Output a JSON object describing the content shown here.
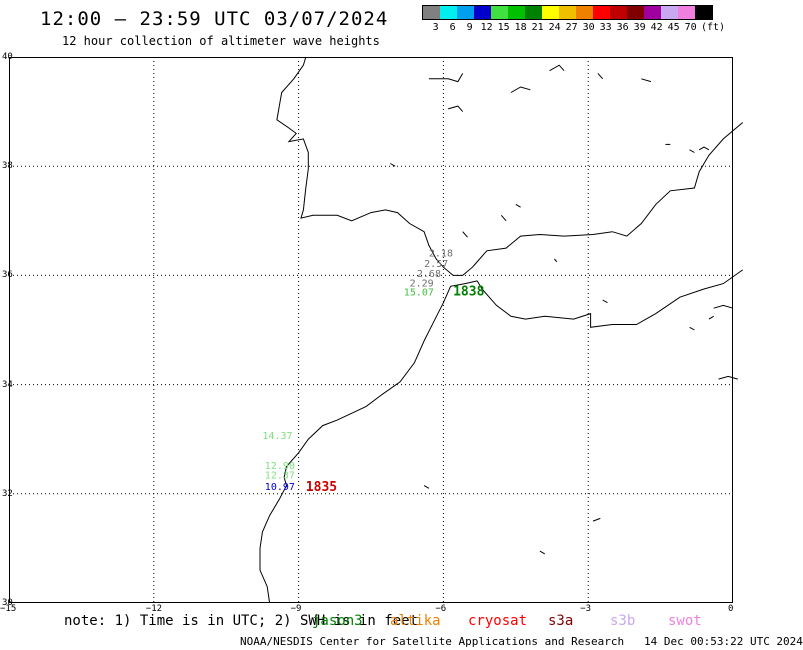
{
  "header": {
    "title": "12:00 – 23:59 UTC 03/07/2024",
    "subtitle": "12 hour collection of altimeter wave heights"
  },
  "color_scale": {
    "bins": [
      {
        "label": "3",
        "color": "#808080"
      },
      {
        "label": "6",
        "color": "#00eeee"
      },
      {
        "label": "9",
        "color": "#00a0ee"
      },
      {
        "label": "12",
        "color": "#0000cc"
      },
      {
        "label": "15",
        "color": "#40e040"
      },
      {
        "label": "18",
        "color": "#00c000"
      },
      {
        "label": "21",
        "color": "#008000"
      },
      {
        "label": "24",
        "color": "#ffff00"
      },
      {
        "label": "27",
        "color": "#f0c000"
      },
      {
        "label": "30",
        "color": "#f08000"
      },
      {
        "label": "33",
        "color": "#ff0000"
      },
      {
        "label": "36",
        "color": "#c00000"
      },
      {
        "label": "39",
        "color": "#800000"
      },
      {
        "label": "42",
        "color": "#a000a0"
      },
      {
        "label": "45",
        "color": "#c8a8f0"
      },
      {
        "label": "70",
        "color": "#f080e0"
      },
      {
        "label": "",
        "color": "#000000"
      }
    ],
    "unit": "(ft)"
  },
  "axes": {
    "lon_ticks": [
      "−15",
      "−12",
      "−9",
      "−6",
      "−3",
      "0"
    ],
    "lat_ticks": [
      "40",
      "38",
      "36",
      "34",
      "32",
      "30"
    ],
    "lon_range": [
      -15,
      0
    ],
    "lat_range": [
      30,
      40
    ]
  },
  "swh_readings": [
    {
      "text": "2.18",
      "lon": -6.3,
      "lat": 36.35,
      "color": "#707070"
    },
    {
      "text": "2.57",
      "lon": -6.4,
      "lat": 36.15,
      "color": "#707070"
    },
    {
      "text": "2.68",
      "lon": -6.55,
      "lat": 35.97,
      "color": "#707070"
    },
    {
      "text": "2.29",
      "lon": -6.7,
      "lat": 35.8,
      "color": "#707070"
    },
    {
      "text": "15.07",
      "lon": -6.82,
      "lat": 35.63,
      "color": "#40c040"
    },
    {
      "text": "14.37",
      "lon": -9.75,
      "lat": 33.0,
      "color": "#80e080"
    },
    {
      "text": "12.90",
      "lon": -9.7,
      "lat": 32.45,
      "color": "#80e080"
    },
    {
      "text": "12.37",
      "lon": -9.7,
      "lat": 32.28,
      "color": "#80e080"
    },
    {
      "text": "10.97",
      "lon": -9.7,
      "lat": 32.07,
      "color": "#0000cc"
    }
  ],
  "pass_times": [
    {
      "text": "1838",
      "lon": -5.8,
      "lat": 35.63,
      "color": "#008000"
    },
    {
      "text": "1835",
      "lon": -8.85,
      "lat": 32.05,
      "color": "#cc0000"
    }
  ],
  "note": {
    "text": "note: 1) Time is in UTC; 2) SWH is in feet"
  },
  "satellites": [
    {
      "name": "jason3",
      "color": "#008000"
    },
    {
      "name": "altika",
      "color": "#f08000"
    },
    {
      "name": "cryosat",
      "color": "#ff0000"
    },
    {
      "name": "s3a",
      "color": "#800000"
    },
    {
      "name": "s3b",
      "color": "#c8a8f0"
    },
    {
      "name": "swot",
      "color": "#f080e0"
    }
  ],
  "footer": {
    "credit": "NOAA/NESDIS Center for Satellite Applications and Research",
    "timestamp": "14 Dec 00:53:22 UTC 2024"
  }
}
